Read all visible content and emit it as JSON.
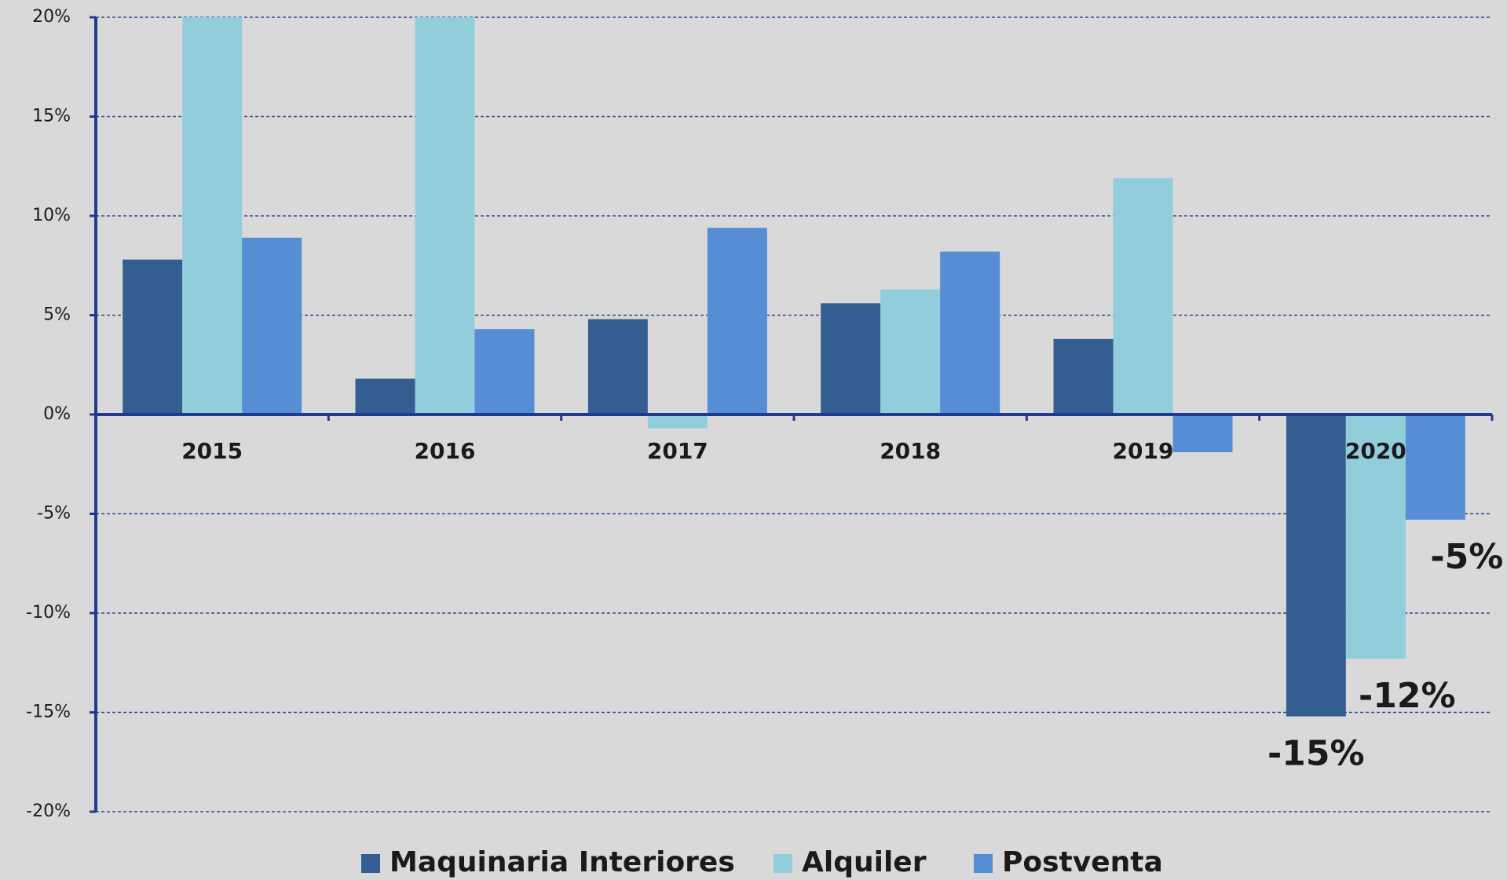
{
  "chart_data": {
    "type": "bar",
    "categories": [
      "2015",
      "2016",
      "2017",
      "2018",
      "2019",
      "2020"
    ],
    "series": [
      {
        "name": "Maquinaria Interiores",
        "color": "#345d91",
        "values": [
          7.8,
          1.8,
          4.8,
          5.6,
          3.8,
          -15.2
        ],
        "value_labels": [
          null,
          null,
          null,
          null,
          null,
          "-15%"
        ]
      },
      {
        "name": "Alquiler",
        "color": "#92cddc",
        "values": [
          20,
          20,
          -0.7,
          6.3,
          11.9,
          -12.3
        ],
        "value_labels": [
          null,
          null,
          null,
          null,
          null,
          "-12%"
        ]
      },
      {
        "name": "Postventa",
        "color": "#558ed5",
        "values": [
          8.9,
          4.3,
          9.4,
          8.2,
          -1.9,
          -5.3
        ],
        "value_labels": [
          null,
          null,
          null,
          null,
          null,
          "-5%"
        ]
      }
    ],
    "ylim": [
      -20,
      20
    ],
    "yticks": [
      {
        "value": -20,
        "label": "-20%"
      },
      {
        "value": -15,
        "label": "-15%"
      },
      {
        "value": -10,
        "label": "-10%"
      },
      {
        "value": -5,
        "label": "-5%"
      },
      {
        "value": 0,
        "label": "0%"
      },
      {
        "value": 5,
        "label": "5%"
      },
      {
        "value": 10,
        "label": "10%"
      },
      {
        "value": 15,
        "label": "15%"
      },
      {
        "value": 20,
        "label": "20%"
      }
    ],
    "grid": true,
    "legend": "bottom"
  }
}
